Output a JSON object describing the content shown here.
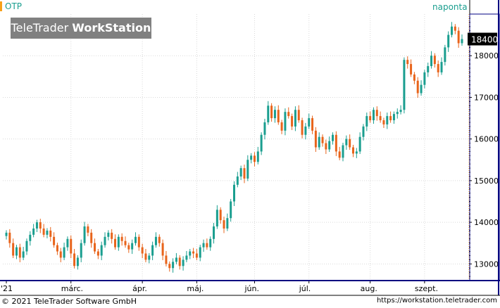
{
  "header": {
    "ticker": "OTP",
    "period": "naponta",
    "logo_light": "TeleTrader",
    "logo_bold": "WorkStation"
  },
  "footer": {
    "copyright": "© 2021  TeleTrader Software GmbH",
    "url": "https://workstation.teletrader.com"
  },
  "colors": {
    "up": "#1a9e8f",
    "down": "#e8641b",
    "grid": "#d9d9d9",
    "axis": "#000080",
    "accent": "#f7a11a"
  },
  "chart_data": {
    "type": "candlestick",
    "title": "OTP",
    "interval": "naponta",
    "ylim": [
      12600,
      19000
    ],
    "y_ticks": [
      13000,
      14000,
      15000,
      16000,
      17000,
      18000
    ],
    "last_value": 18400,
    "x_labels": [
      {
        "label": "'21",
        "index": 0
      },
      {
        "label": "márc.",
        "index": 19
      },
      {
        "label": "ápr.",
        "index": 40
      },
      {
        "label": "máj.",
        "index": 56
      },
      {
        "label": "jún.",
        "index": 73
      },
      {
        "label": "júl.",
        "index": 89
      },
      {
        "label": "aug.",
        "index": 107
      },
      {
        "label": "szept.",
        "index": 123
      }
    ],
    "close": [
      13750,
      13500,
      13200,
      13400,
      13150,
      13300,
      13550,
      13700,
      13850,
      14000,
      13850,
      13700,
      13800,
      13650,
      13450,
      13300,
      13150,
      13400,
      13600,
      13250,
      12950,
      13150,
      13500,
      13900,
      13750,
      13500,
      13300,
      13200,
      13450,
      13650,
      13750,
      13600,
      13400,
      13650,
      13550,
      13450,
      13350,
      13500,
      13650,
      13400,
      13250,
      13100,
      13200,
      13450,
      13650,
      13500,
      13200,
      13000,
      12900,
      13050,
      13150,
      12950,
      13100,
      13200,
      13300,
      13250,
      13150,
      13400,
      13500,
      13400,
      13600,
      13900,
      14300,
      14050,
      13850,
      14100,
      14500,
      14900,
      15100,
      15300,
      15050,
      15500,
      15600,
      15450,
      15700,
      16100,
      16400,
      16800,
      16500,
      16700,
      16400,
      16200,
      16650,
      16550,
      16300,
      16700,
      16450,
      16100,
      16300,
      16500,
      16200,
      15800,
      16050,
      15900,
      15750,
      15950,
      16100,
      15700,
      15550,
      15850,
      16000,
      15800,
      15650,
      15700,
      16050,
      16300,
      16550,
      16450,
      16700,
      16550,
      16450,
      16350,
      16550,
      16450,
      16600,
      16650,
      16700,
      17900,
      17800,
      17550,
      17400,
      17100,
      17300,
      17600,
      17750,
      18000,
      17800,
      17600,
      17850,
      18200,
      18500,
      18700,
      18600,
      18300,
      18400
    ],
    "series": [
      {
        "name": "OTP",
        "values_ref": "close"
      }
    ]
  }
}
